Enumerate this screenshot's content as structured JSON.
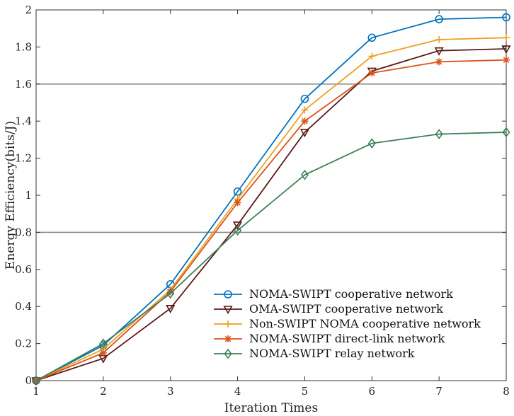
{
  "chart_data": {
    "type": "line",
    "title": "",
    "xlabel": "Iteration Times",
    "ylabel": "Energy Efficiency(bits/J)",
    "x": [
      1,
      2,
      3,
      4,
      5,
      6,
      7,
      8
    ],
    "xlim": [
      1,
      8
    ],
    "ylim": [
      0,
      2
    ],
    "xticks": [
      "1",
      "2",
      "3",
      "4",
      "5",
      "6",
      "7",
      "8"
    ],
    "yticks": [
      "0",
      "0.2",
      "0.4",
      "0.6",
      "0.8",
      "1",
      "1.2",
      "1.4",
      "1.6",
      "1.8",
      "2"
    ],
    "ytick_values": [
      0,
      0.2,
      0.4,
      0.6,
      0.8,
      1.0,
      1.2,
      1.4,
      1.6,
      1.8,
      2.0
    ],
    "gridlines_y": [
      0.8,
      1.6
    ],
    "legend_position": "bottom-right",
    "series": [
      {
        "name": "NOMA-SWIPT cooperative network",
        "color": "#0072BD",
        "marker": "circle",
        "values": [
          0.0,
          0.19,
          0.52,
          1.02,
          1.52,
          1.85,
          1.95,
          1.96
        ]
      },
      {
        "name": "OMA-SWIPT cooperative network",
        "color": "#5A1A1A",
        "marker": "triangle-down",
        "values": [
          0.0,
          0.12,
          0.39,
          0.84,
          1.34,
          1.67,
          1.78,
          1.79
        ]
      },
      {
        "name": "Non-SWIPT NOMA cooperative network",
        "color": "#EDA020",
        "marker": "plus",
        "values": [
          0.0,
          0.17,
          0.49,
          0.98,
          1.46,
          1.75,
          1.84,
          1.85
        ]
      },
      {
        "name": "NOMA-SWIPT direct-link network",
        "color": "#D95319",
        "marker": "asterisk",
        "values": [
          0.0,
          0.15,
          0.48,
          0.96,
          1.4,
          1.66,
          1.72,
          1.73
        ]
      },
      {
        "name": "NOMA-SWIPT relay network",
        "color": "#3F8058",
        "marker": "diamond",
        "values": [
          0.0,
          0.2,
          0.47,
          0.81,
          1.11,
          1.28,
          1.33,
          1.34
        ]
      }
    ]
  }
}
